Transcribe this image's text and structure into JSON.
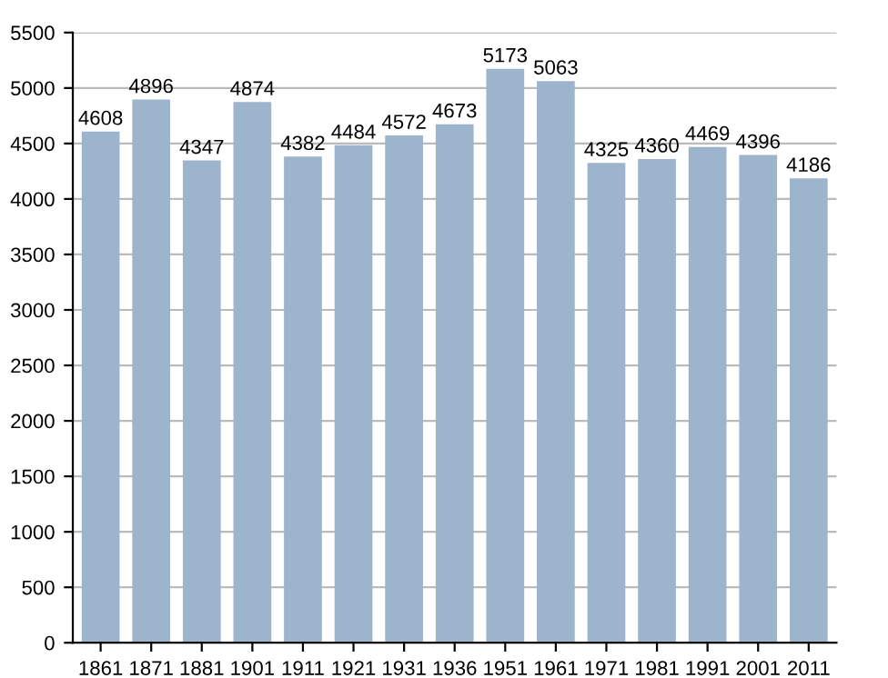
{
  "chart_data": {
    "type": "bar",
    "categories": [
      "1861",
      "1871",
      "1881",
      "1901",
      "1911",
      "1921",
      "1931",
      "1936",
      "1951",
      "1961",
      "1971",
      "1981",
      "1991",
      "2001",
      "2011"
    ],
    "values": [
      4608,
      4896,
      4347,
      4874,
      4382,
      4484,
      4572,
      4673,
      5173,
      5063,
      4325,
      4360,
      4469,
      4396,
      4186
    ],
    "color": "#9db4cd",
    "ylim": [
      0,
      5500
    ],
    "yticks": [
      0,
      500,
      1000,
      1500,
      2000,
      2500,
      3000,
      3500,
      4000,
      4500,
      5000,
      5500
    ],
    "grid": "y",
    "data_labels": true
  }
}
